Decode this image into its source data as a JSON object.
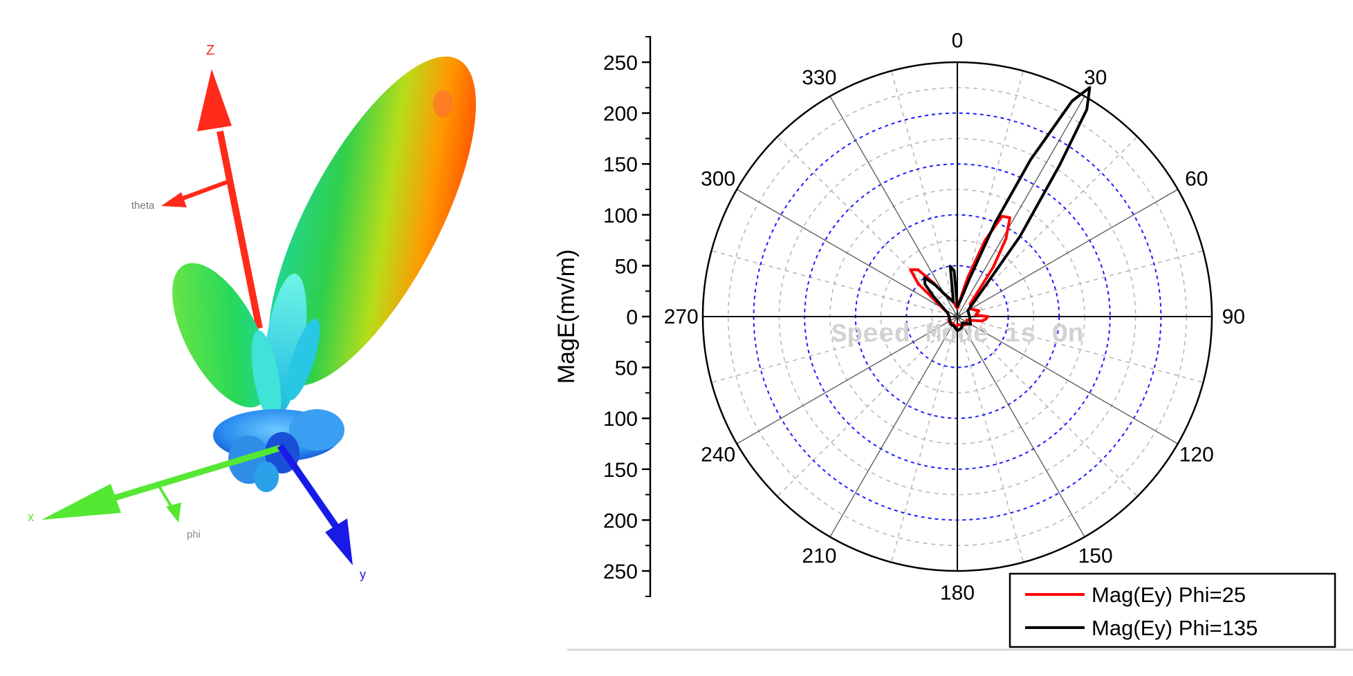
{
  "left_panel": {
    "axis_labels": {
      "z": "Z",
      "x": "x",
      "y": "y",
      "theta": "theta",
      "phi": "phi"
    },
    "colors": {
      "z_axis": "#ff2a1a",
      "x_axis": "#55e832",
      "y_axis": "#1a1ae6",
      "theta_label": "#777777",
      "phi_label": "#888888"
    }
  },
  "chart_data": {
    "type": "polar-line",
    "ylabel": "MagE(mv/m)",
    "radial_range": [
      0,
      250
    ],
    "radial_ticks": [
      "250",
      "200",
      "150",
      "100",
      "50",
      "0",
      "50",
      "100",
      "150",
      "200",
      "250"
    ],
    "angle_ticks": [
      "0",
      "30",
      "60",
      "90",
      "120",
      "150",
      "180",
      "210",
      "240",
      "270",
      "300",
      "330"
    ],
    "grid": true,
    "legend_position": "bottom-right",
    "watermark": "Speed Mode is On",
    "series": [
      {
        "name": "Mag(Ey) Phi=25",
        "color": "#ff0000",
        "points": [
          [
            0,
            8
          ],
          [
            10,
            18
          ],
          [
            15,
            40
          ],
          [
            20,
            80
          ],
          [
            24,
            108
          ],
          [
            28,
            110
          ],
          [
            32,
            90
          ],
          [
            36,
            60
          ],
          [
            40,
            30
          ],
          [
            45,
            18
          ],
          [
            60,
            15
          ],
          [
            75,
            22
          ],
          [
            85,
            18
          ],
          [
            90,
            30
          ],
          [
            95,
            28
          ],
          [
            100,
            25
          ],
          [
            110,
            10
          ],
          [
            130,
            12
          ],
          [
            150,
            10
          ],
          [
            170,
            8
          ],
          [
            190,
            10
          ],
          [
            210,
            8
          ],
          [
            240,
            10
          ],
          [
            270,
            8
          ],
          [
            290,
            10
          ],
          [
            305,
            25
          ],
          [
            310,
            50
          ],
          [
            315,
            65
          ],
          [
            320,
            60
          ],
          [
            325,
            40
          ],
          [
            330,
            25
          ],
          [
            340,
            18
          ],
          [
            350,
            12
          ],
          [
            360,
            8
          ]
        ]
      },
      {
        "name": "Mag(Ey) Phi=135",
        "color": "#000000",
        "points": [
          [
            0,
            10
          ],
          [
            10,
            15
          ],
          [
            18,
            40
          ],
          [
            22,
            100
          ],
          [
            25,
            170
          ],
          [
            28,
            240
          ],
          [
            30,
            260
          ],
          [
            32,
            240
          ],
          [
            34,
            180
          ],
          [
            38,
            100
          ],
          [
            45,
            30
          ],
          [
            60,
            12
          ],
          [
            90,
            12
          ],
          [
            120,
            15
          ],
          [
            140,
            8
          ],
          [
            160,
            12
          ],
          [
            180,
            14
          ],
          [
            200,
            10
          ],
          [
            220,
            10
          ],
          [
            250,
            8
          ],
          [
            270,
            8
          ],
          [
            290,
            10
          ],
          [
            310,
            30
          ],
          [
            315,
            45
          ],
          [
            320,
            50
          ],
          [
            325,
            38
          ],
          [
            335,
            20
          ],
          [
            345,
            15
          ],
          [
            352,
            50
          ],
          [
            356,
            45
          ],
          [
            360,
            10
          ]
        ]
      }
    ]
  }
}
